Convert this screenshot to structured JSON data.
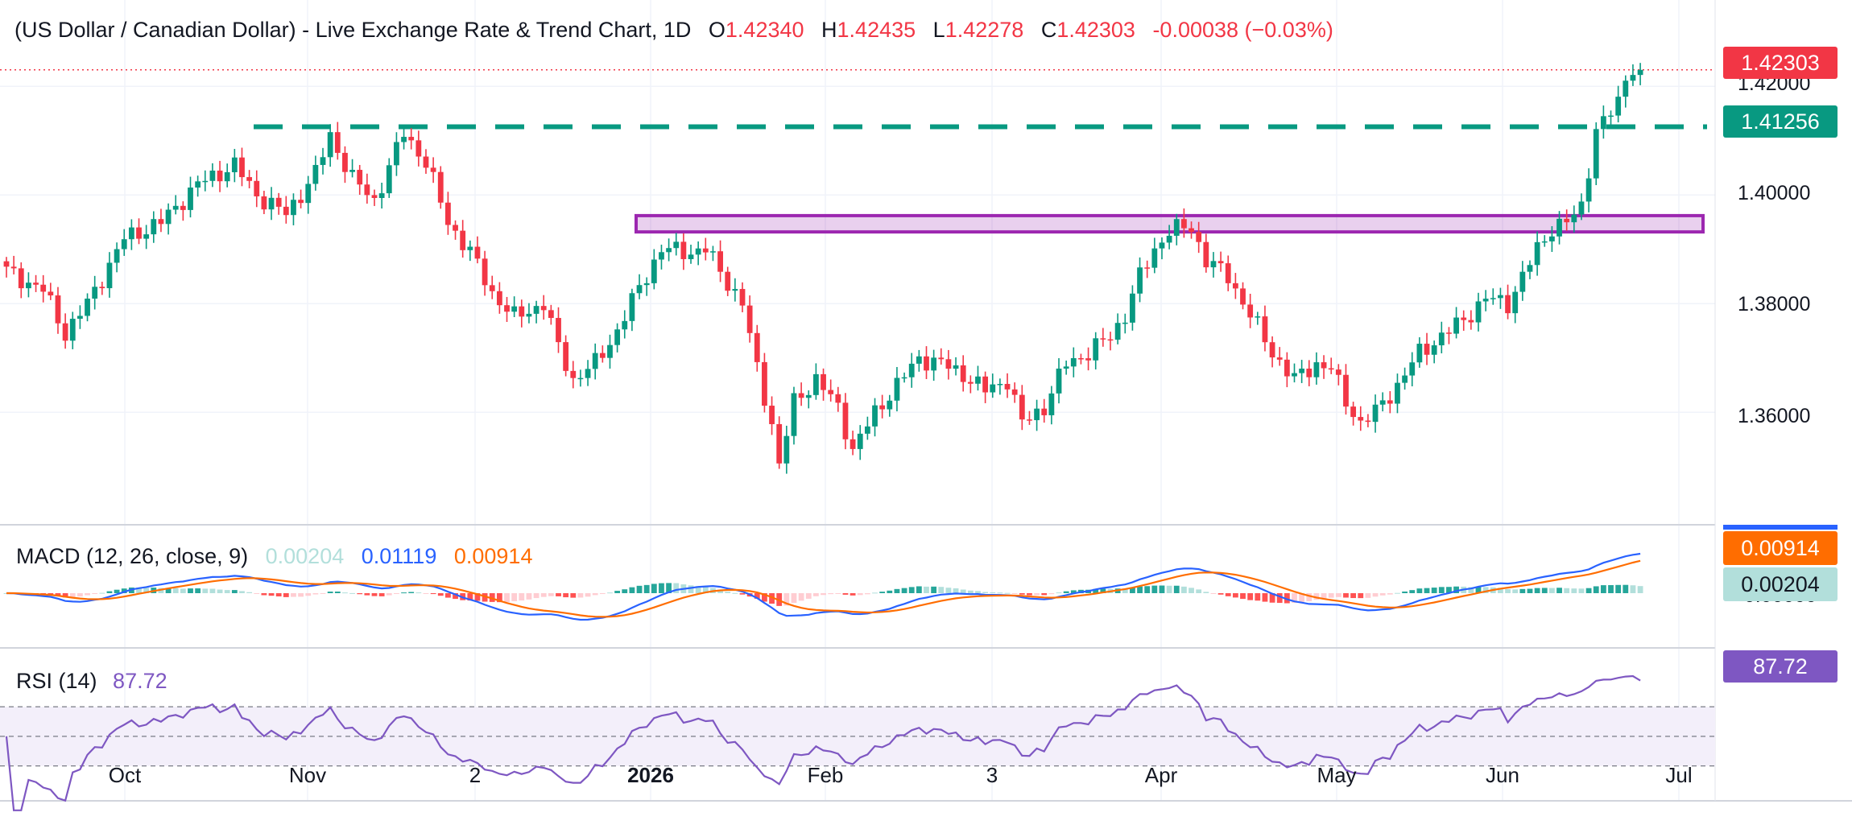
{
  "header": {
    "symbol_title": "(US Dollar / Canadian Dollar) - Live Exchange Rate & Trend Chart, 1D",
    "open_label": "O",
    "open": "1.42340",
    "high_label": "H",
    "high": "1.42435",
    "low_label": "L",
    "low": "1.42278",
    "close_label": "C",
    "close": "1.42303",
    "change": "-0.00038 (−0.03%)"
  },
  "price_axis": {
    "ticks": [
      "1.42000",
      "1.40000",
      "1.38000",
      "1.36000"
    ],
    "last_price_badge": "1.42303",
    "level_badge": "1.41256"
  },
  "macd": {
    "label": "MACD (12, 26, close, 9)",
    "hist_value": "0.00204",
    "macd_value": "0.01119",
    "signal_value": "0.00914",
    "badge_signal": "0.00914",
    "badge_hist": "0.00204",
    "badge_top_hidden": "0.00000"
  },
  "rsi": {
    "label": "RSI (14)",
    "value": "87.72",
    "badge": "87.72"
  },
  "time_axis": {
    "labels": [
      {
        "text": "Oct",
        "bold": false
      },
      {
        "text": "Nov",
        "bold": false
      },
      {
        "text": "2",
        "bold": false
      },
      {
        "text": "2026",
        "bold": true
      },
      {
        "text": "Feb",
        "bold": false
      },
      {
        "text": "3",
        "bold": false
      },
      {
        "text": "Apr",
        "bold": false
      },
      {
        "text": "May",
        "bold": false
      },
      {
        "text": "Jun",
        "bold": false
      },
      {
        "text": "Jul",
        "bold": false
      }
    ]
  },
  "colors": {
    "up": "#089981",
    "down": "#f23645",
    "macd_line": "#2962ff",
    "signal_line": "#ff6d00",
    "hist_up_strong": "#26a69a",
    "hist_up_weak": "#b2dfdb",
    "hist_down_strong": "#ff5252",
    "hist_down_weak": "#ffcdd2",
    "rsi_line": "#7e57c2",
    "rsi_band": "#f3effa",
    "resistance_zone": "#9c27b0",
    "support_line": "#089981",
    "text": "#131722"
  },
  "chart_data": {
    "type": "candlestick",
    "title": "(US Dollar / Canadian Dollar) - Live Exchange Rate & Trend Chart, 1D",
    "ylim": [
      1.347,
      1.427
    ],
    "x_labels": [
      "Oct",
      "Nov",
      "2",
      "2026",
      "Feb",
      "3",
      "Apr",
      "May",
      "Jun",
      "Jul"
    ],
    "support_level": 1.41256,
    "resistance_zone": [
      1.3932,
      1.3962
    ],
    "last_close": 1.42303,
    "close_path": [
      [
        0,
        1.386
      ],
      [
        5,
        1.3825
      ],
      [
        8,
        1.3745
      ],
      [
        11,
        1.38
      ],
      [
        16,
        1.392
      ],
      [
        21,
        1.395
      ],
      [
        26,
        1.402
      ],
      [
        31,
        1.4055
      ],
      [
        34,
        1.4
      ],
      [
        38,
        1.3965
      ],
      [
        42,
        1.404
      ],
      [
        44,
        1.411
      ],
      [
        47,
        1.403
      ],
      [
        50,
        1.399
      ],
      [
        52,
        1.405
      ],
      [
        54,
        1.4115
      ],
      [
        57,
        1.406
      ],
      [
        60,
        1.395
      ],
      [
        63,
        1.3895
      ],
      [
        66,
        1.382
      ],
      [
        69,
        1.3775
      ],
      [
        73,
        1.38
      ],
      [
        75,
        1.372
      ],
      [
        77,
        1.366
      ],
      [
        80,
        1.369
      ],
      [
        83,
        1.375
      ],
      [
        86,
        1.383
      ],
      [
        89,
        1.39
      ],
      [
        93,
        1.3895
      ],
      [
        95,
        1.39
      ],
      [
        98,
        1.384
      ],
      [
        100,
        1.38
      ],
      [
        102,
        1.368
      ],
      [
        104,
        1.358
      ],
      [
        105,
        1.35
      ],
      [
        107,
        1.362
      ],
      [
        110,
        1.366
      ],
      [
        113,
        1.361
      ],
      [
        115,
        1.353
      ],
      [
        118,
        1.36
      ],
      [
        121,
        1.365
      ],
      [
        124,
        1.37
      ],
      [
        127,
        1.369
      ],
      [
        130,
        1.367
      ],
      [
        133,
        1.364
      ],
      [
        136,
        1.366
      ],
      [
        138,
        1.358
      ],
      [
        141,
        1.361
      ],
      [
        144,
        1.369
      ],
      [
        147,
        1.371
      ],
      [
        150,
        1.374
      ],
      [
        152,
        1.378
      ],
      [
        154,
        1.385
      ],
      [
        156,
        1.39
      ],
      [
        158,
        1.3935
      ],
      [
        161,
        1.394
      ],
      [
        163,
        1.388
      ],
      [
        166,
        1.385
      ],
      [
        169,
        1.378
      ],
      [
        172,
        1.371
      ],
      [
        175,
        1.366
      ],
      [
        178,
        1.369
      ],
      [
        180,
        1.368
      ],
      [
        182,
        1.362
      ],
      [
        184,
        1.358
      ],
      [
        186,
        1.36
      ],
      [
        189,
        1.365
      ],
      [
        192,
        1.371
      ],
      [
        195,
        1.374
      ],
      [
        198,
        1.377
      ],
      [
        201,
        1.381
      ],
      [
        204,
        1.38
      ],
      [
        206,
        1.385
      ],
      [
        208,
        1.39
      ],
      [
        210,
        1.394
      ],
      [
        212,
        1.395
      ],
      [
        213,
        1.396
      ],
      [
        214,
        1.398
      ],
      [
        215,
        1.405
      ],
      [
        216,
        1.412
      ],
      [
        218,
        1.415
      ],
      [
        219,
        1.417
      ],
      [
        220,
        1.422
      ],
      [
        221,
        1.4234
      ],
      [
        222,
        1.423
      ]
    ]
  }
}
